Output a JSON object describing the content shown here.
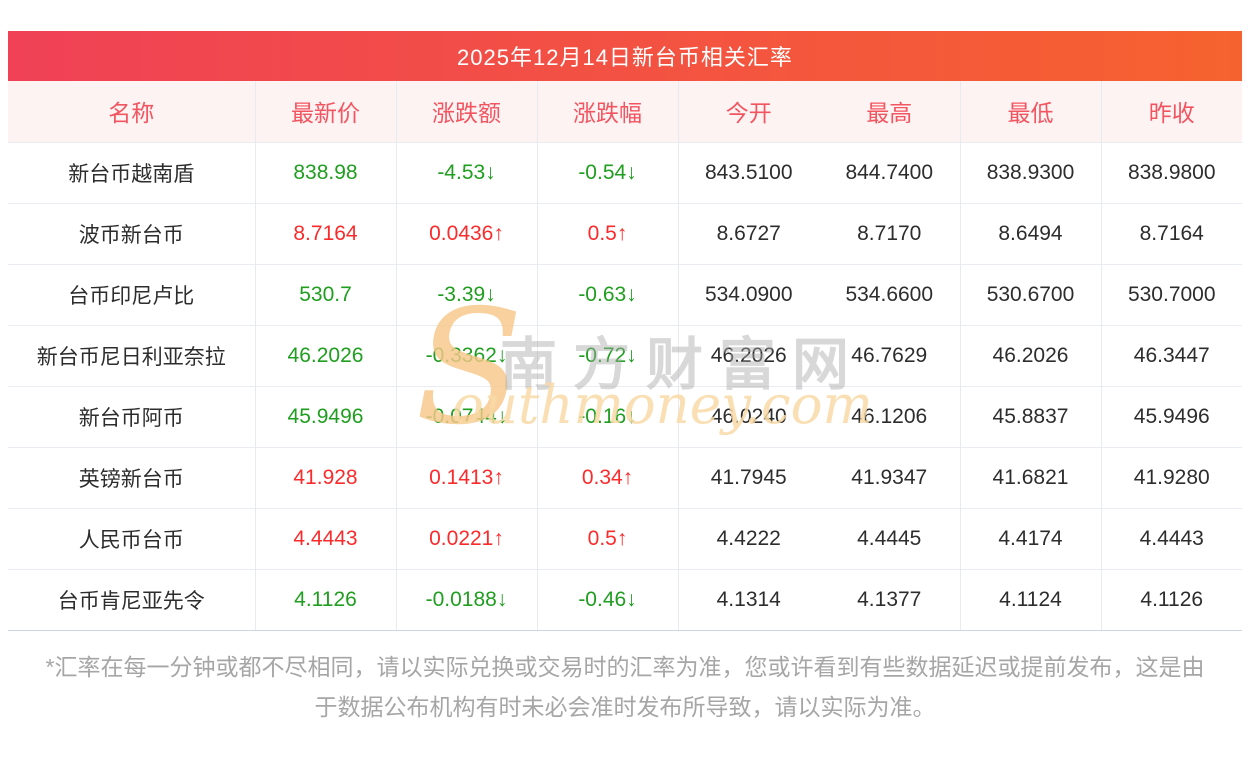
{
  "watermark": {
    "s_glyph": "S",
    "chinese": "南方财富网",
    "english": "outhmoney.com"
  },
  "footnote": "*汇率在每一分钟或都不尽相同，请以实际兑换或交易时的汇率为准，您或许看到有些数据延迟或提前发布，这是由于数据公布机构有时未必会准时发布所导致，请以实际为准。",
  "colors": {
    "banner_gradient_left": "#f04156",
    "banner_gradient_right": "#f6622f",
    "header_text_red": "#f25560",
    "rise_red": "#fb2b2b",
    "fall_green": "#1f9e1f",
    "watermark_orange": "#f6c78a",
    "watermark_gray": "#c9c9c9"
  },
  "chart_data": {
    "type": "table",
    "title": "2025年12月14日新台币相关汇率",
    "columns": [
      "名称",
      "最新价",
      "涨跌额",
      "涨跌幅",
      "今开",
      "最高",
      "最低",
      "昨收"
    ],
    "rows": [
      {
        "name": "新台币越南盾",
        "latest": "838.98",
        "change": "-4.53↓",
        "change_pct": "-0.54↓",
        "open": "843.5100",
        "high": "844.7400",
        "low": "838.9300",
        "prev_close": "838.9800",
        "direction": "down"
      },
      {
        "name": "波币新台币",
        "latest": "8.7164",
        "change": "0.0436↑",
        "change_pct": "0.5↑",
        "open": "8.6727",
        "high": "8.7170",
        "low": "8.6494",
        "prev_close": "8.7164",
        "direction": "up"
      },
      {
        "name": "台币印尼卢比",
        "latest": "530.7",
        "change": "-3.39↓",
        "change_pct": "-0.63↓",
        "open": "534.0900",
        "high": "534.6600",
        "low": "530.6700",
        "prev_close": "530.7000",
        "direction": "down"
      },
      {
        "name": "新台币尼日利亚奈拉",
        "latest": "46.2026",
        "change": "-0.3362↓",
        "change_pct": "-0.72↓",
        "open": "46.2026",
        "high": "46.7629",
        "low": "46.2026",
        "prev_close": "46.3447",
        "direction": "down"
      },
      {
        "name": "新台币阿币",
        "latest": "45.9496",
        "change": "-0.0744↓",
        "change_pct": "-0.16↓",
        "open": "46.0240",
        "high": "46.1206",
        "low": "45.8837",
        "prev_close": "45.9496",
        "direction": "down"
      },
      {
        "name": "英镑新台币",
        "latest": "41.928",
        "change": "0.1413↑",
        "change_pct": "0.34↑",
        "open": "41.7945",
        "high": "41.9347",
        "low": "41.6821",
        "prev_close": "41.9280",
        "direction": "up"
      },
      {
        "name": "人民币台币",
        "latest": "4.4443",
        "change": "0.0221↑",
        "change_pct": "0.5↑",
        "open": "4.4222",
        "high": "4.4445",
        "low": "4.4174",
        "prev_close": "4.4443",
        "direction": "up"
      },
      {
        "name": "台币肯尼亚先令",
        "latest": "4.1126",
        "change": "-0.0188↓",
        "change_pct": "-0.46↓",
        "open": "4.1314",
        "high": "4.1377",
        "low": "4.1124",
        "prev_close": "4.1126",
        "direction": "down"
      }
    ]
  }
}
